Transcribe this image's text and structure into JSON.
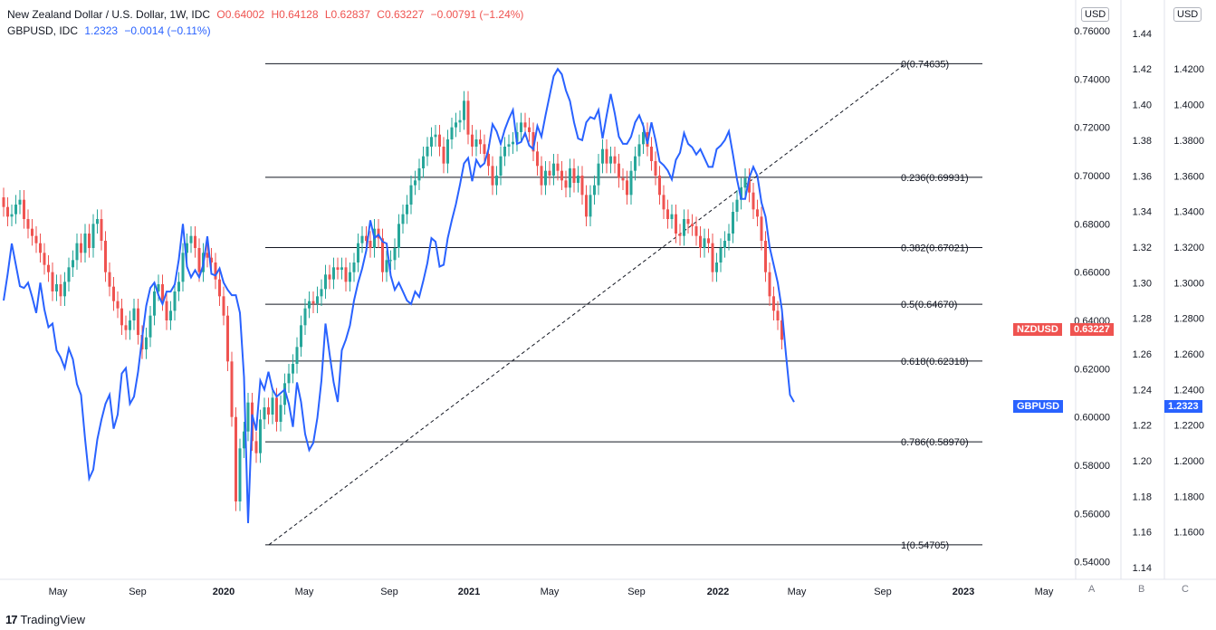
{
  "legend": {
    "main": {
      "title": "New Zealand Dollar / U.S. Dollar, 1W, IDC",
      "open": "O0.64002",
      "high": "H0.64128",
      "low": "L0.62837",
      "close": "C0.63227",
      "change": "−0.00791 (−1.24%)"
    },
    "overlay": {
      "title": "GBPUSD, IDC",
      "value": "1.2323",
      "change": "−0.0014 (−0.11%)"
    }
  },
  "axes": {
    "unit_left": "USD",
    "unit_right": "USD",
    "letters": [
      "A",
      "B",
      "C"
    ]
  },
  "branding": {
    "name": "TradingView",
    "mark": "17"
  },
  "chart_data": {
    "type": "line",
    "symbols": {
      "main": "NZDUSD",
      "overlay": "GBPUSD"
    },
    "price_axis_a": {
      "ticks": [
        "0.76000",
        "0.74000",
        "0.72000",
        "0.70000",
        "0.68000",
        "0.66000",
        "0.64000",
        "0.62000",
        "0.60000",
        "0.58000",
        "0.56000",
        "0.54000"
      ],
      "range": [
        0.5365,
        0.7615
      ]
    },
    "price_axis_b": {
      "ticks": [
        "1.44",
        "1.42",
        "1.40",
        "1.38",
        "1.36",
        "1.34",
        "1.32",
        "1.30",
        "1.28",
        "1.26",
        "1.24",
        "1.22",
        "1.20",
        "1.18",
        "1.16",
        "1.14"
      ],
      "range": [
        1.1385,
        1.4435
      ]
    },
    "price_axis_c": {
      "ticks": [
        "1.4200",
        "1.4000",
        "1.3800",
        "1.3600",
        "1.3400",
        "1.3200",
        "1.3000",
        "1.2800",
        "1.2600",
        "1.2400",
        "1.2200",
        "1.2000",
        "1.1800",
        "1.1600"
      ],
      "range": [
        1.1385,
        1.4435
      ]
    },
    "time_axis": [
      "May",
      "Sep",
      "2020",
      "May",
      "Sep",
      "2021",
      "May",
      "Sep",
      "2022",
      "May",
      "Sep",
      "2023",
      "May"
    ],
    "time_axis_bold": [
      "2020",
      "2021",
      "2022",
      "2023"
    ],
    "fib_levels": [
      {
        "label": "0(0.74635)",
        "value": 0.74635
      },
      {
        "label": "0.236(0.69931)",
        "value": 0.69931
      },
      {
        "label": "0.382(0.67021)",
        "value": 0.67021
      },
      {
        "label": "0.5(0.64670)",
        "value": 0.6467
      },
      {
        "label": "0.618(0.62318)",
        "value": 0.62318
      },
      {
        "label": "0.786(0.58970)",
        "value": 0.5897
      },
      {
        "label": "1(0.54705)",
        "value": 0.54705
      }
    ],
    "last_price": {
      "main": "0.63227",
      "overlay": "1.2323"
    },
    "main_close": [
      0.687,
      0.683,
      0.684,
      0.688,
      0.69,
      0.682,
      0.678,
      0.675,
      0.672,
      0.668,
      0.663,
      0.66,
      0.652,
      0.655,
      0.65,
      0.656,
      0.662,
      0.665,
      0.672,
      0.668,
      0.676,
      0.67,
      0.68,
      0.682,
      0.673,
      0.66,
      0.654,
      0.648,
      0.645,
      0.638,
      0.636,
      0.64,
      0.645,
      0.634,
      0.628,
      0.633,
      0.642,
      0.652,
      0.655,
      0.648,
      0.64,
      0.644,
      0.652,
      0.656,
      0.668,
      0.672,
      0.675,
      0.67,
      0.66,
      0.668,
      0.666,
      0.664,
      0.657,
      0.65,
      0.642,
      0.623,
      0.6,
      0.565,
      0.587,
      0.594,
      0.606,
      0.59,
      0.585,
      0.599,
      0.604,
      0.601,
      0.608,
      0.598,
      0.605,
      0.614,
      0.618,
      0.622,
      0.629,
      0.638,
      0.645,
      0.648,
      0.647,
      0.65,
      0.653,
      0.659,
      0.657,
      0.662,
      0.661,
      0.662,
      0.656,
      0.66,
      0.664,
      0.672,
      0.675,
      0.673,
      0.67,
      0.678,
      0.674,
      0.66,
      0.665,
      0.665,
      0.67,
      0.68,
      0.684,
      0.688,
      0.696,
      0.698,
      0.703,
      0.708,
      0.712,
      0.716,
      0.717,
      0.712,
      0.705,
      0.715,
      0.72,
      0.722,
      0.723,
      0.731,
      0.717,
      0.712,
      0.715,
      0.713,
      0.709,
      0.704,
      0.696,
      0.7,
      0.708,
      0.712,
      0.713,
      0.714,
      0.718,
      0.722,
      0.72,
      0.718,
      0.71,
      0.704,
      0.696,
      0.702,
      0.7,
      0.705,
      0.702,
      0.698,
      0.695,
      0.703,
      0.697,
      0.7,
      0.692,
      0.683,
      0.692,
      0.696,
      0.705,
      0.711,
      0.705,
      0.708,
      0.705,
      0.699,
      0.698,
      0.692,
      0.702,
      0.708,
      0.713,
      0.718,
      0.712,
      0.706,
      0.7,
      0.692,
      0.686,
      0.682,
      0.684,
      0.676,
      0.675,
      0.682,
      0.68,
      0.679,
      0.675,
      0.67,
      0.674,
      0.672,
      0.66,
      0.664,
      0.67,
      0.673,
      0.676,
      0.685,
      0.69,
      0.695,
      0.699,
      0.693,
      0.686,
      0.683,
      0.673,
      0.66,
      0.65,
      0.644,
      0.64,
      0.632
    ],
    "overlay_close": [
      1.29,
      1.305,
      1.322,
      1.31,
      1.298,
      1.297,
      1.3,
      1.292,
      1.283,
      1.3,
      1.285,
      1.275,
      1.277,
      1.262,
      1.258,
      1.252,
      1.263,
      1.257,
      1.243,
      1.237,
      1.212,
      1.19,
      1.195,
      1.212,
      1.223,
      1.232,
      1.237,
      1.218,
      1.226,
      1.249,
      1.252,
      1.232,
      1.236,
      1.25,
      1.269,
      1.287,
      1.297,
      1.3,
      1.293,
      1.288,
      1.295,
      1.295,
      1.299,
      1.313,
      1.333,
      1.309,
      1.303,
      1.307,
      1.303,
      1.31,
      1.326,
      1.305,
      1.304,
      1.308,
      1.3,
      1.296,
      1.293,
      1.293,
      1.283,
      1.247,
      1.165,
      1.226,
      1.217,
      1.245,
      1.24,
      1.25,
      1.24,
      1.236,
      1.238,
      1.24,
      1.232,
      1.219,
      1.244,
      1.233,
      1.215,
      1.206,
      1.21,
      1.224,
      1.245,
      1.277,
      1.26,
      1.244,
      1.233,
      1.262,
      1.268,
      1.276,
      1.29,
      1.3,
      1.308,
      1.318,
      1.335,
      1.325,
      1.327,
      1.323,
      1.322,
      1.304,
      1.296,
      1.3,
      1.295,
      1.29,
      1.288,
      1.295,
      1.292,
      1.301,
      1.311,
      1.325,
      1.323,
      1.309,
      1.31,
      1.325,
      1.335,
      1.344,
      1.355,
      1.367,
      1.37,
      1.357,
      1.369,
      1.365,
      1.367,
      1.375,
      1.389,
      1.385,
      1.378,
      1.386,
      1.392,
      1.397,
      1.378,
      1.379,
      1.384,
      1.377,
      1.375,
      1.388,
      1.382,
      1.394,
      1.405,
      1.416,
      1.42,
      1.417,
      1.408,
      1.402,
      1.39,
      1.381,
      1.38,
      1.39,
      1.393,
      1.392,
      1.397,
      1.381,
      1.394,
      1.406,
      1.395,
      1.382,
      1.378,
      1.378,
      1.382,
      1.39,
      1.394,
      1.388,
      1.378,
      1.39,
      1.38,
      1.368,
      1.366,
      1.363,
      1.358,
      1.369,
      1.373,
      1.384,
      1.378,
      1.376,
      1.372,
      1.375,
      1.37,
      1.365,
      1.365,
      1.375,
      1.377,
      1.38,
      1.385,
      1.372,
      1.358,
      1.347,
      1.347,
      1.359,
      1.365,
      1.36,
      1.345,
      1.337,
      1.32,
      1.31,
      1.3,
      1.285,
      1.26,
      1.237,
      1.233
    ],
    "trend_line": {
      "from_value": 0.54705,
      "to_value": 0.74635
    },
    "grid": false
  }
}
